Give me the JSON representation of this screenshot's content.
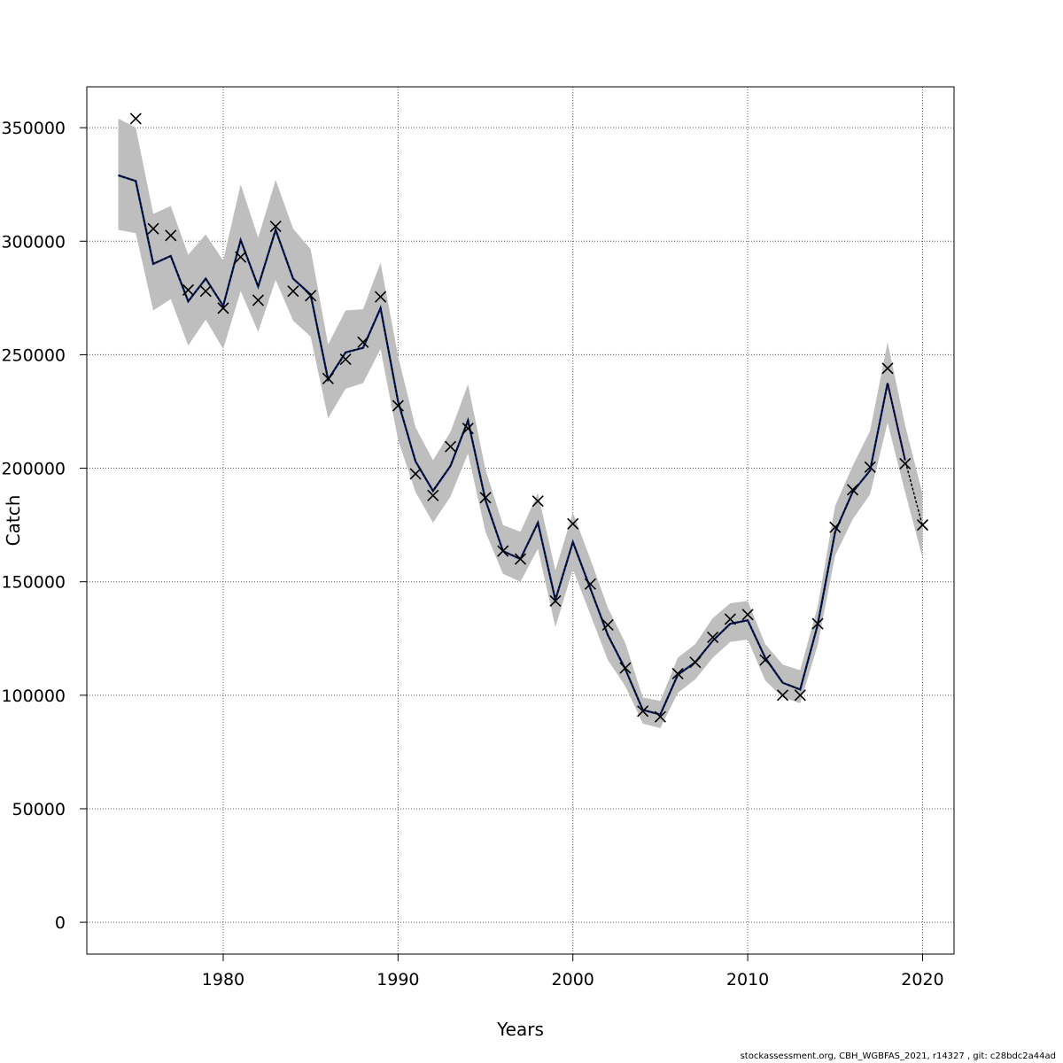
{
  "chart_data": {
    "type": "line",
    "xlabel": "Years",
    "ylabel": "Catch",
    "xlim": [
      1972.2,
      2021.8
    ],
    "ylim": [
      -14000,
      368000
    ],
    "x_ticks": [
      1980,
      1990,
      2000,
      2010,
      2020
    ],
    "y_ticks": [
      0,
      50000,
      100000,
      150000,
      200000,
      250000,
      300000,
      350000
    ],
    "grid": true,
    "years": [
      1974,
      1975,
      1976,
      1977,
      1978,
      1979,
      1980,
      1981,
      1982,
      1983,
      1984,
      1985,
      1986,
      1987,
      1988,
      1989,
      1990,
      1991,
      1992,
      1993,
      1994,
      1995,
      1996,
      1997,
      1998,
      1999,
      2000,
      2001,
      2002,
      2003,
      2004,
      2005,
      2006,
      2007,
      2008,
      2009,
      2010,
      2011,
      2012,
      2013,
      2014,
      2015,
      2016,
      2017,
      2018,
      2019,
      2020
    ],
    "estimate": [
      329000,
      326500,
      290000,
      293500,
      273500,
      283500,
      271500,
      300500,
      280000,
      305000,
      283500,
      276500,
      239000,
      251000,
      253000,
      270500,
      229500,
      203000,
      190000,
      201000,
      221000,
      186000,
      163500,
      160000,
      176000,
      142000,
      167500,
      147000,
      126500,
      111500,
      93500,
      91500,
      109000,
      114500,
      124000,
      131500,
      133000,
      116500,
      105500,
      102500,
      131000,
      172000,
      189500,
      199000,
      237500,
      203500,
      174500
    ],
    "band_upper": [
      354000,
      350000,
      312000,
      315500,
      294000,
      303000,
      291500,
      325000,
      301500,
      327000,
      305500,
      296500,
      254500,
      269500,
      270000,
      290500,
      249500,
      218000,
      203500,
      216000,
      237000,
      199500,
      175000,
      172000,
      189000,
      155000,
      180500,
      160000,
      138500,
      123000,
      99000,
      97500,
      116500,
      122500,
      134000,
      140500,
      141500,
      122500,
      113500,
      111000,
      139000,
      183500,
      201000,
      216500,
      255500,
      219000,
      188500
    ],
    "band_lower": [
      305000,
      303500,
      269500,
      274500,
      254000,
      265500,
      252500,
      278000,
      260000,
      283000,
      265000,
      258000,
      222000,
      235000,
      237500,
      252500,
      212500,
      189500,
      176000,
      187500,
      206500,
      172000,
      153500,
      150000,
      164500,
      130000,
      155500,
      135500,
      115500,
      104000,
      87500,
      85500,
      101000,
      107000,
      116500,
      123500,
      124500,
      106500,
      99000,
      96500,
      122000,
      161500,
      177500,
      188500,
      220000,
      189500,
      160500
    ],
    "observed": [
      null,
      354000,
      305500,
      302500,
      278500,
      278000,
      270500,
      293000,
      274000,
      306500,
      278000,
      276000,
      239500,
      248000,
      255500,
      275500,
      227500,
      197500,
      188000,
      209500,
      217500,
      187000,
      163500,
      160000,
      185500,
      141500,
      175500,
      149000,
      131000,
      112000,
      93000,
      90500,
      109500,
      114500,
      125500,
      133500,
      135500,
      115500,
      100000,
      100000,
      131500,
      174000,
      190500,
      200500,
      244000,
      202000,
      175000
    ],
    "series": [
      {
        "color": "#2e8b57"
      },
      {
        "color": "#9acd32"
      },
      {
        "color": "#00bfff"
      },
      {
        "color": "#191970"
      },
      {
        "color": "#000000"
      }
    ],
    "band_color": "#bebebe",
    "observed_marker": "x"
  },
  "footer_text": "stockassessment.org, CBH_WGBFAS_2021, r14327 , git: c28bdc2a44ad"
}
